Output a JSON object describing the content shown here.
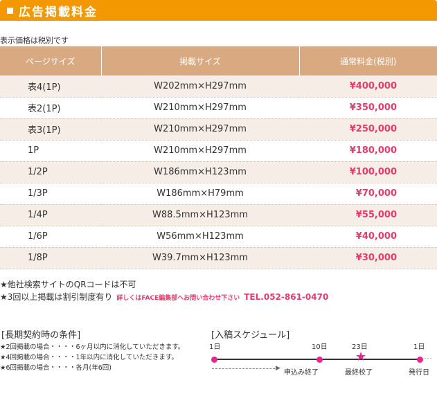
{
  "header": {
    "title": "広告掲載料金"
  },
  "tax_note": "表示価格は税別です",
  "table": {
    "headers": [
      "ページサイズ",
      "掲載サイズ",
      "通常料金(税別)"
    ],
    "rows": [
      {
        "size": "表4(1P)",
        "dim": "W202mm×H297mm",
        "price": "¥400,000"
      },
      {
        "size": "表2(1P)",
        "dim": "W210mm×H297mm",
        "price": "¥350,000"
      },
      {
        "size": "表3(1P)",
        "dim": "W210mm×H297mm",
        "price": "¥250,000"
      },
      {
        "size": "1P",
        "dim": "W210mm×H297mm",
        "price": "¥180,000"
      },
      {
        "size": "1/2P",
        "dim": "W186mm×H123mm",
        "price": "¥100,000"
      },
      {
        "size": "1/3P",
        "dim": "W186mm×H79mm",
        "price": "¥70,000"
      },
      {
        "size": "1/4P",
        "dim": "W88.5mm×H123mm",
        "price": "¥55,000"
      },
      {
        "size": "1/6P",
        "dim": "W56mm×H123mm",
        "price": "¥40,000"
      },
      {
        "size": "1/8P",
        "dim": "W39.7mm×H123mm",
        "price": "¥30,000"
      }
    ]
  },
  "notes": {
    "qr": "★他社検索サイトのQRコードは不可",
    "discount": "★3回以上掲載は割引制度有り",
    "inquiry": "詳しくはFACE編集部へお問い合わせ下さい",
    "tel": "TEL.052-861-0470"
  },
  "long_term": {
    "heading": "[長期契約時の条件]",
    "items": [
      "★2回掲載の場合・・・・6ヶ月以内に消化していただきます。",
      "★4回掲載の場合・・・・1年以内に消化していただきます。",
      "★6回掲載の場合・・・・各月(年6回)"
    ]
  },
  "schedule": {
    "heading": "[入稿スケジュール]",
    "top_labels": [
      "1日",
      "10日",
      "23日",
      "1日"
    ],
    "bottom_labels": [
      "申込み終了",
      "最終校了",
      "発行日"
    ],
    "accent": "#e8268e"
  }
}
